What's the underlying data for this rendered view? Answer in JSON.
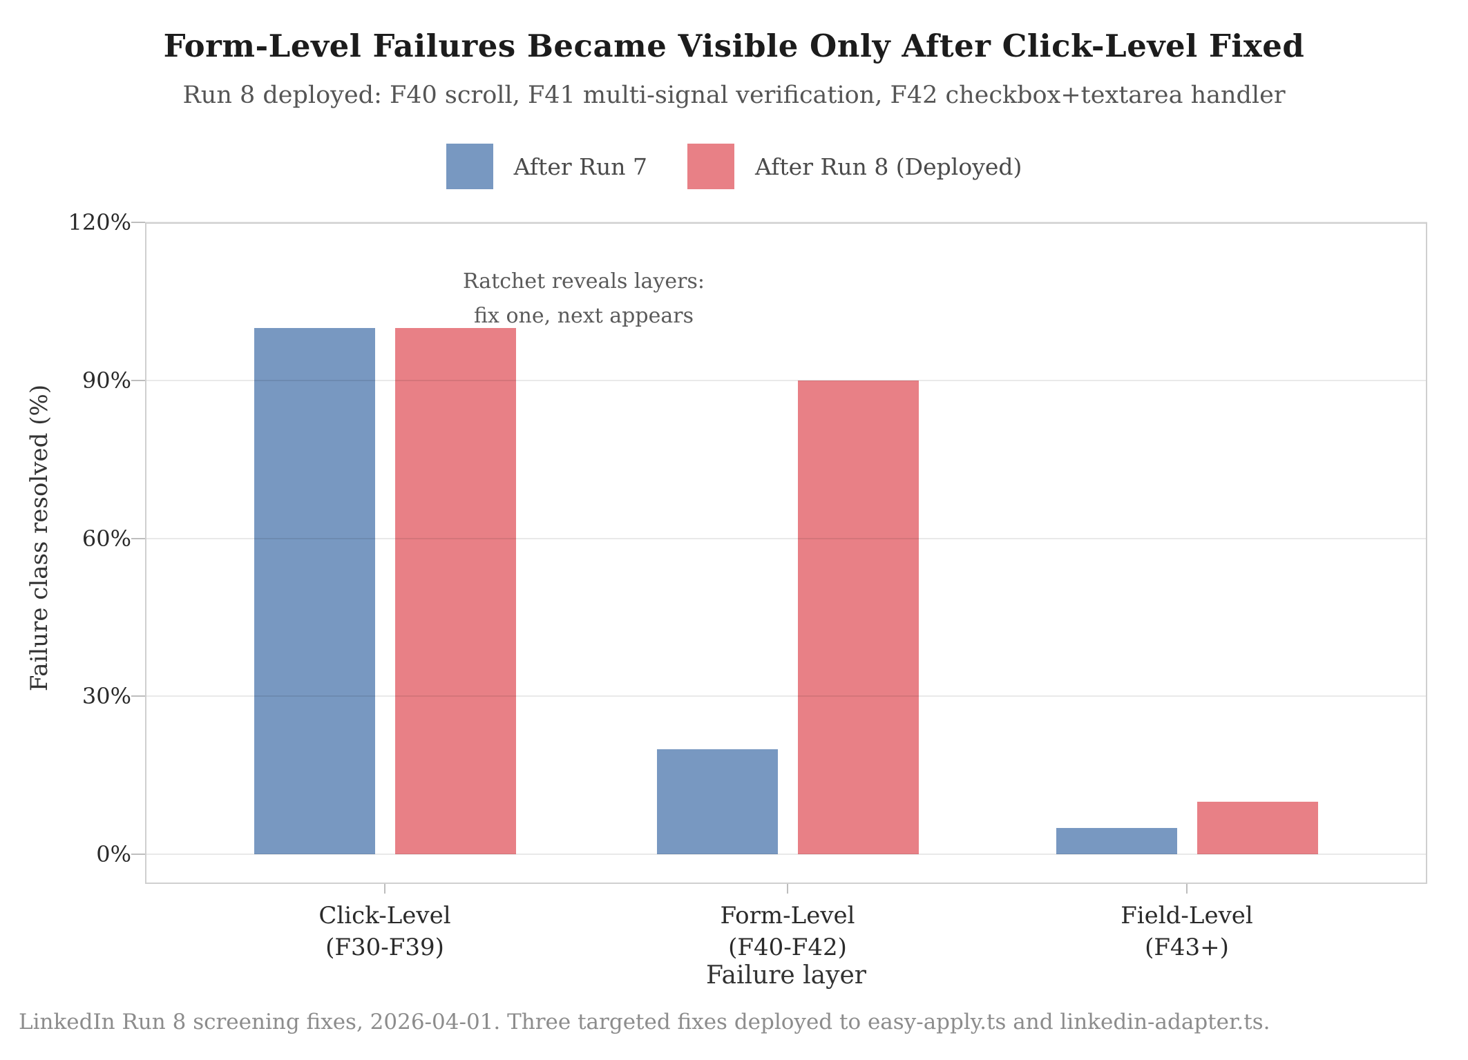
{
  "title": "Form-Level Failures Became Visible Only After Click-Level Fixed",
  "subtitle": "Run 8 deployed: F40 scroll, F41 multi-signal verification, F42 checkbox+textarea handler",
  "legend": [
    {
      "label": "After Run 7",
      "color": "#7898c1"
    },
    {
      "label": "After Run 8 (Deployed)",
      "color": "#e88086"
    }
  ],
  "annotation": {
    "line1": "Ratchet reveals layers:",
    "line2": "fix one, next appears"
  },
  "footer": "LinkedIn Run 8 screening fixes, 2026-04-01. Three targeted fixes deployed to easy-apply.ts and linkedin-adapter.ts.",
  "chart_data": {
    "type": "bar",
    "title": "Form-Level Failures Became Visible Only After Click-Level Fixed",
    "subtitle": "Run 8 deployed: F40 scroll, F41 multi-signal verification, F42 checkbox+textarea handler",
    "categories": [
      {
        "line1": "Click-Level",
        "line2": "(F30-F39)"
      },
      {
        "line1": "Form-Level",
        "line2": "(F40-F42)"
      },
      {
        "line1": "Field-Level",
        "line2": "(F43+)"
      }
    ],
    "series": [
      {
        "name": "After Run 7",
        "color": "#7898c1",
        "values": [
          100,
          20,
          5
        ]
      },
      {
        "name": "After Run 8 (Deployed)",
        "color": "#e88086",
        "values": [
          100,
          90,
          10
        ]
      }
    ],
    "xlabel": "Failure layer",
    "ylabel": "Failure class resolved (%)",
    "ylim": [
      0,
      120
    ],
    "yticks": [
      0,
      30,
      60,
      90,
      120
    ],
    "ytick_labels": [
      "0%",
      "30%",
      "60%",
      "90%",
      "120%"
    ],
    "grid": "horizontal",
    "legend_position": "top",
    "annotation_text": "Ratchet reveals layers: fix one, next appears"
  }
}
